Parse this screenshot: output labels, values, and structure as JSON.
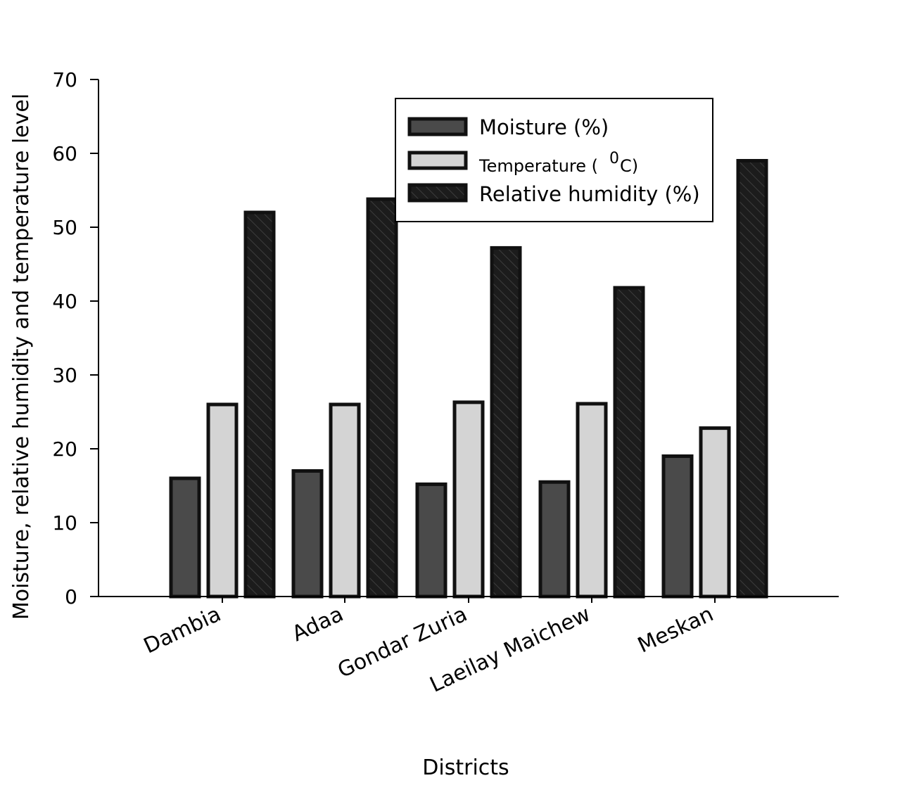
{
  "chart_data": {
    "type": "bar",
    "title": "",
    "xlabel": "Districts",
    "ylabel": "Moisture, relative humidity and temperature level",
    "categories": [
      "Dambia",
      "Adaa",
      "Gondar Zuria",
      "Laeilay Maichew",
      "Meskan"
    ],
    "ylim": [
      0,
      70
    ],
    "yticks": [
      0,
      10,
      20,
      30,
      40,
      50,
      60,
      70
    ],
    "grid": false,
    "legend_position": "top-right",
    "series": [
      {
        "name": "Moisture (%)",
        "values": [
          16,
          17,
          15.2,
          15.5,
          19
        ],
        "color": "#4a4a4a",
        "pattern": "solid"
      },
      {
        "name": "Temperature ( 0C)",
        "name_main": "Temperature ( ",
        "name_sup": "0",
        "name_tail": "C)",
        "values": [
          26,
          26,
          26.3,
          26.1,
          22.8
        ],
        "color": "#d4d4d4",
        "pattern": "solid"
      },
      {
        "name": "Relative humidity (%)",
        "values": [
          52,
          53.8,
          47.2,
          41.8,
          59
        ],
        "color": "#1c1c1c",
        "pattern": "hatched"
      }
    ]
  }
}
